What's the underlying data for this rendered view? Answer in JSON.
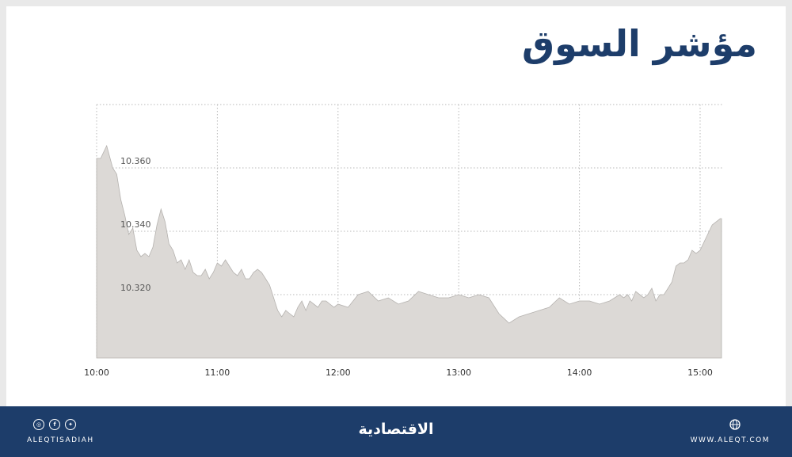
{
  "title": "مؤشر السوق",
  "chart_data": {
    "type": "area",
    "xlabel": "",
    "ylabel": "",
    "x_ticks": [
      "10:00",
      "11:00",
      "12:00",
      "13:00",
      "14:00",
      "15:00"
    ],
    "y_ticks": [
      {
        "value": 10.36,
        "label": "10.360"
      },
      {
        "value": 10.34,
        "label": "10.340"
      },
      {
        "value": 10.32,
        "label": "10.320"
      }
    ],
    "ylim": [
      10.3,
      10.38
    ],
    "xlim_minutes": [
      0,
      310
    ],
    "grid": true,
    "series": [
      {
        "x": [
          0,
          2,
          5,
          8,
          10,
          12,
          14,
          16,
          18,
          20,
          22,
          24,
          26,
          28,
          30,
          32,
          34,
          36,
          38,
          40,
          42,
          44,
          46,
          48,
          50,
          52,
          54,
          56,
          58,
          60,
          62,
          64,
          66,
          68,
          70,
          72,
          74,
          76,
          78,
          80,
          82,
          84,
          86,
          88,
          90,
          92,
          94,
          96,
          98,
          100,
          102,
          104,
          106,
          108,
          110,
          112,
          114,
          116,
          118,
          120,
          125,
          130,
          135,
          140,
          145,
          150,
          155,
          160,
          165,
          170,
          175,
          180,
          185,
          190,
          195,
          200,
          205,
          210,
          215,
          220,
          225,
          230,
          235,
          240,
          245,
          250,
          255,
          260,
          262,
          264,
          266,
          268,
          270,
          272,
          274,
          276,
          278,
          280,
          282,
          284,
          286,
          288,
          290,
          292,
          294,
          296,
          298,
          300,
          303,
          306,
          310
        ],
        "values": [
          10.363,
          10.363,
          10.367,
          10.36,
          10.358,
          10.35,
          10.345,
          10.339,
          10.341,
          10.334,
          10.332,
          10.333,
          10.332,
          10.335,
          10.342,
          10.347,
          10.343,
          10.336,
          10.334,
          10.33,
          10.331,
          10.328,
          10.331,
          10.327,
          10.326,
          10.326,
          10.328,
          10.325,
          10.327,
          10.33,
          10.329,
          10.331,
          10.329,
          10.327,
          10.326,
          10.328,
          10.325,
          10.325,
          10.327,
          10.328,
          10.327,
          10.325,
          10.323,
          10.319,
          10.315,
          10.313,
          10.315,
          10.314,
          10.313,
          10.316,
          10.318,
          10.315,
          10.318,
          10.317,
          10.316,
          10.318,
          10.318,
          10.317,
          10.316,
          10.317,
          10.316,
          10.32,
          10.321,
          10.318,
          10.319,
          10.317,
          10.318,
          10.321,
          10.32,
          10.319,
          10.319,
          10.32,
          10.319,
          10.32,
          10.319,
          10.314,
          10.311,
          10.313,
          10.314,
          10.315,
          10.316,
          10.319,
          10.317,
          10.318,
          10.318,
          10.317,
          10.318,
          10.32,
          10.319,
          10.32,
          10.318,
          10.321,
          10.32,
          10.319,
          10.32,
          10.322,
          10.318,
          10.32,
          10.32,
          10.322,
          10.324,
          10.329,
          10.33,
          10.33,
          10.331,
          10.334,
          10.333,
          10.334,
          10.338,
          10.342,
          10.344
        ]
      }
    ]
  },
  "footer": {
    "social_icons": [
      "instagram-icon",
      "facebook-icon",
      "twitter-icon"
    ],
    "handle": "ALEQTISADIAH",
    "logo_text": "الاقتصادية",
    "website": "WWW.ALEQT.COM",
    "website_icon": "globe-icon"
  },
  "colors": {
    "title": "#1d3d6a",
    "footer_bg": "#1d3d6a",
    "area_fill": "#dcd9d6",
    "area_stroke": "#b5b2af",
    "grid": "#b8b8b8"
  }
}
